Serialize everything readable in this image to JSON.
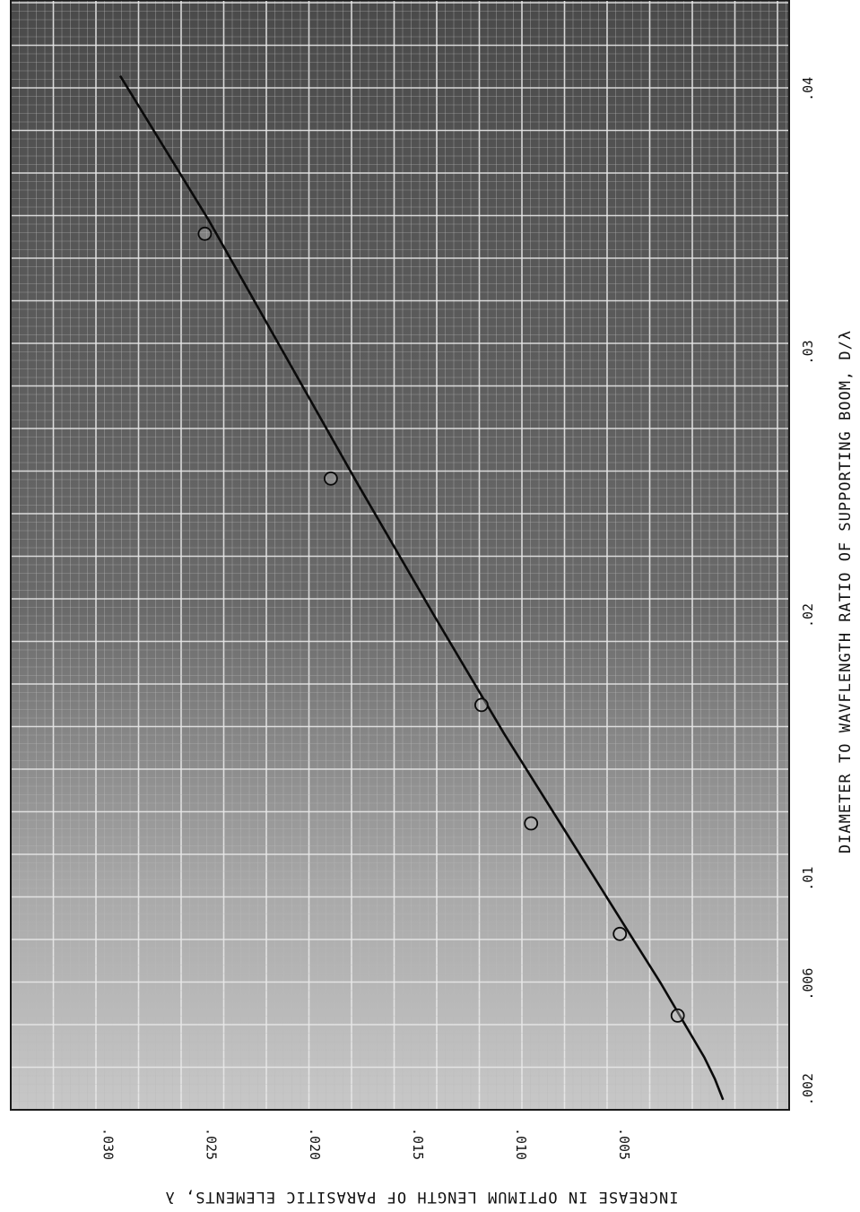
{
  "chart_data": {
    "type": "scatter",
    "xlabel": "DIAMETER TO WAVFLENGTH RATIO OF SUPPORTING BOOM, D/λ",
    "ylabel": "INCREASE IN OPTIMUM LENGTH OF PARASITIC ELEMENTS, λ",
    "x_ticks": [
      {
        "value": 0.002,
        "label": ".002"
      },
      {
        "value": 0.006,
        "label": ".006"
      },
      {
        "value": 0.01,
        "label": ".01"
      },
      {
        "value": 0.02,
        "label": ".02"
      },
      {
        "value": 0.03,
        "label": ".03"
      },
      {
        "value": 0.04,
        "label": ".04"
      }
    ],
    "y_ticks": [
      {
        "value": 0.005,
        "label": ".005"
      },
      {
        "value": 0.01,
        "label": ".010"
      },
      {
        "value": 0.015,
        "label": ".015"
      },
      {
        "value": 0.02,
        "label": ".020"
      },
      {
        "value": 0.025,
        "label": ".025"
      },
      {
        "value": 0.03,
        "label": ".030"
      }
    ],
    "series": [
      {
        "kind": "points",
        "x": [
          0.0048,
          0.0079,
          0.0121,
          0.0166,
          0.0252,
          0.0345
        ],
        "y": [
          0.0022,
          0.005,
          0.0093,
          0.0117,
          0.019,
          0.0251
        ]
      },
      {
        "kind": "fitted-line",
        "x": [
          0.0016,
          0.0024,
          0.0032,
          0.004,
          0.0048,
          0.006,
          0.008,
          0.01,
          0.0125,
          0.0155,
          0.02,
          0.025,
          0.03,
          0.035,
          0.0405
        ],
        "y": [
          0.0,
          0.0004,
          0.0009,
          0.0015,
          0.0021,
          0.003,
          0.0046,
          0.0062,
          0.0082,
          0.0106,
          0.014,
          0.0177,
          0.0213,
          0.0249,
          0.0292
        ]
      }
    ],
    "xlim": [
      0.00122,
      0.04338
    ],
    "ylim": [
      -0.0032,
      0.0345
    ],
    "grid": true,
    "orientation": "rotated-90-ccw"
  }
}
